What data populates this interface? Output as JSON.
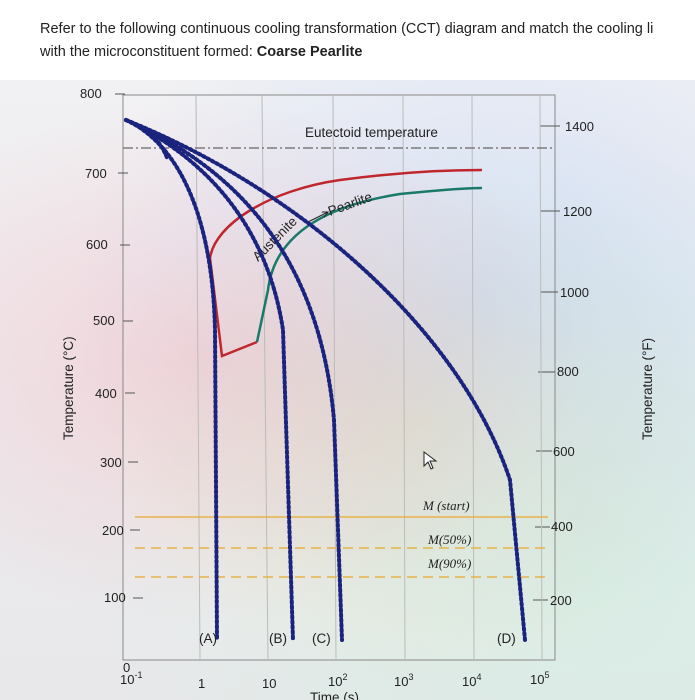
{
  "question": {
    "text": "Refer to the following continuous cooling transformation (CCT) diagram and match the cooling li",
    "text_line2": "with the microconstituent formed: ",
    "emphasis": "Coarse Pearlite"
  },
  "chart_data": {
    "type": "line",
    "title": "",
    "xlabel": "Time (s)",
    "ylabel": "Temperature (°C)",
    "y2label": "Temperature (°F)",
    "x_scale": "log",
    "xlim": [
      0.1,
      100000
    ],
    "ylim": [
      0,
      800
    ],
    "x_ticks": [
      "10-1",
      "1",
      "10",
      "102",
      "103",
      "104",
      "105"
    ],
    "y_ticks": [
      "800",
      "700",
      "600",
      "500",
      "400",
      "300",
      "200",
      "100",
      "0"
    ],
    "y2_ticks": [
      "1400",
      "1200",
      "1000",
      "800",
      "600",
      "400",
      "200"
    ],
    "annotations": {
      "eutectoid": "Eutectoid temperature",
      "pearlite": "Pearlite",
      "austenite": "Austenite",
      "m_start": "M (start)",
      "m50": "M(50%)",
      "m90": "M(90%)"
    },
    "horizontal_lines": [
      {
        "name": "eutectoid",
        "y": 727
      },
      {
        "name": "M (start)",
        "y": 220
      },
      {
        "name": "M(50%)",
        "y": 180
      },
      {
        "name": "M(90%)",
        "y": 140
      }
    ],
    "curve_labels": [
      "(A)",
      "(B)",
      "(C)",
      "(D)"
    ],
    "colors": {
      "pearlite_start": "#c0272d",
      "pearlite_finish": "#1a7a6a",
      "cooling": "#1a237e",
      "mline": "#e8b24a"
    }
  }
}
